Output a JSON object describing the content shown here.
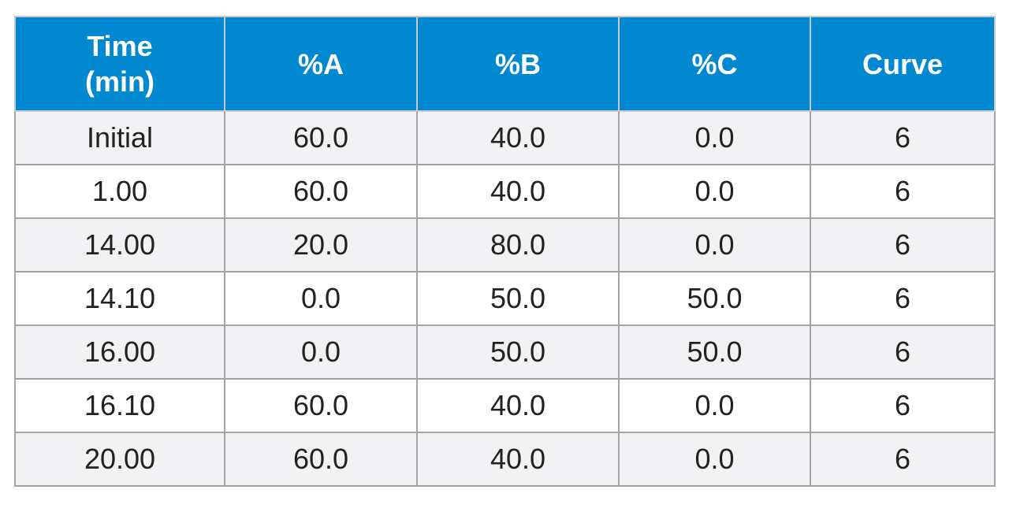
{
  "table": {
    "header": [
      "Time (min)",
      "%A",
      "%B",
      "%C",
      "Curve"
    ],
    "rows": [
      [
        "Initial",
        "60.0",
        "40.0",
        "0.0",
        "6"
      ],
      [
        "1.00",
        "60.0",
        "40.0",
        "0.0",
        "6"
      ],
      [
        "14.00",
        "20.0",
        "80.0",
        "0.0",
        "6"
      ],
      [
        "14.10",
        "0.0",
        "50.0",
        "50.0",
        "6"
      ],
      [
        "16.00",
        "0.0",
        "50.0",
        "50.0",
        "6"
      ],
      [
        "16.10",
        "60.0",
        "40.0",
        "0.0",
        "6"
      ],
      [
        "20.00",
        "60.0",
        "40.0",
        "0.0",
        "6"
      ]
    ]
  }
}
